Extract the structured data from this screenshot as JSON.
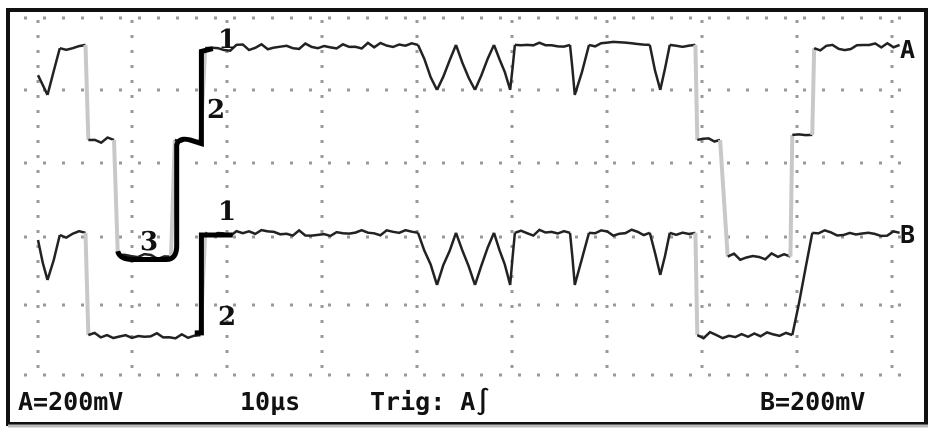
{
  "chart_data": {
    "type": "line",
    "title": "",
    "xlabel": "",
    "ylabel": "",
    "grid": true,
    "x_unit": "µs",
    "y_unit": "mV",
    "xlim": [
      -2,
      93
    ],
    "ylim": [
      -560,
      420
    ],
    "series": [
      {
        "name": "A",
        "color": "#222222",
        "points": [
          [
            0,
            244
          ],
          [
            1,
            189
          ],
          [
            2.3,
            319
          ],
          [
            5,
            328
          ],
          [
            5.3,
            64
          ],
          [
            8,
            64
          ],
          [
            8.4,
            -256
          ],
          [
            14,
            -260
          ],
          [
            14.4,
            64
          ],
          [
            17.1,
            64
          ],
          [
            17.6,
            319
          ],
          [
            40,
            328
          ],
          [
            42,
            203
          ],
          [
            44,
            328
          ],
          [
            46,
            203
          ],
          [
            48,
            328
          ],
          [
            49.7,
            203
          ],
          [
            50.2,
            328
          ],
          [
            56,
            328
          ],
          [
            56.5,
            189
          ],
          [
            58,
            328
          ],
          [
            64.4,
            328
          ],
          [
            65.5,
            203
          ],
          [
            66.5,
            328
          ],
          [
            69.2,
            328
          ],
          [
            69.4,
            64
          ],
          [
            71.8,
            64
          ],
          [
            72.6,
            -260
          ],
          [
            79.2,
            -260
          ],
          [
            79.4,
            78
          ],
          [
            81.5,
            78
          ],
          [
            81.7,
            319
          ],
          [
            90.7,
            328
          ]
        ]
      },
      {
        "name": "B",
        "color": "#222222",
        "points": [
          [
            0,
            -214
          ],
          [
            1,
            -325
          ],
          [
            2.3,
            -200
          ],
          [
            5,
            -194
          ],
          [
            5.3,
            -478
          ],
          [
            17.1,
            -478
          ],
          [
            17.6,
            -194
          ],
          [
            40,
            -194
          ],
          [
            42,
            -339
          ],
          [
            44,
            -194
          ],
          [
            46,
            -339
          ],
          [
            48,
            -194
          ],
          [
            49.7,
            -339
          ],
          [
            50.2,
            -194
          ],
          [
            56,
            -194
          ],
          [
            56.5,
            -339
          ],
          [
            58,
            -194
          ],
          [
            64.4,
            -194
          ],
          [
            65.5,
            -311
          ],
          [
            66.5,
            -194
          ],
          [
            69.2,
            -194
          ],
          [
            69.4,
            -478
          ],
          [
            79.4,
            -478
          ],
          [
            81.5,
            -194
          ],
          [
            90.7,
            -194
          ]
        ]
      }
    ],
    "annotations": [
      "1",
      "2",
      "3",
      "1",
      "2"
    ],
    "channel_labels": [
      "A",
      "B"
    ]
  },
  "status_bar": {
    "channel_a_scale": "A=200mV",
    "timebase": "10µs",
    "trigger": "Trig: A∫",
    "channel_b_scale": "B=200mV"
  }
}
